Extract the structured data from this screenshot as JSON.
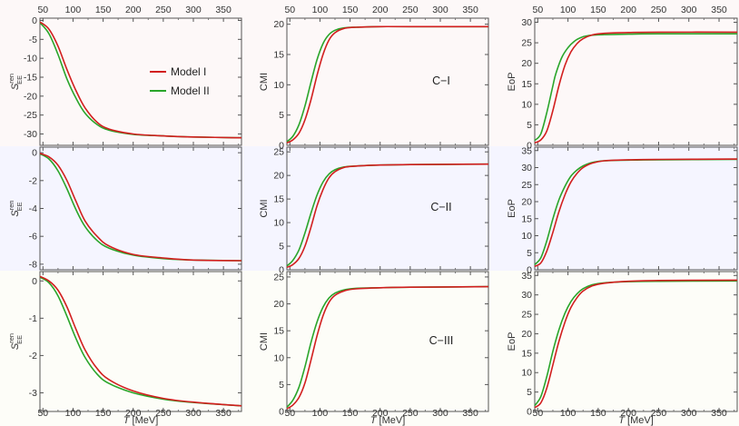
{
  "figure": {
    "xaxis": {
      "label_var": "T",
      "label_unit": " [MeV]",
      "range": [
        45,
        380
      ],
      "ticks": [
        50,
        100,
        150,
        200,
        250,
        300,
        350
      ]
    },
    "legend": {
      "entries": [
        {
          "label": "Model I",
          "color": "#d21f1f"
        },
        {
          "label": "Model II",
          "color": "#2aa52a"
        }
      ]
    },
    "row_backgrounds": [
      "#fdf8f8",
      "#f5f5ff",
      "#fdfdf8"
    ]
  },
  "chart_data": [
    {
      "type": "line",
      "row": 0,
      "col": 0,
      "ylabel_main": "S",
      "ylabel_sup": "ren",
      "ylabel_sub": "EE",
      "ylim": [
        -33,
        0.6
      ],
      "yticks": [
        0,
        -5,
        -10,
        -15,
        -20,
        -25,
        -30
      ],
      "series": [
        {
          "name": "Model I",
          "color": "#d21f1f",
          "x": [
            45,
            60,
            75,
            90,
            105,
            120,
            140,
            160,
            200,
            250,
            300,
            380
          ],
          "y": [
            -0.4,
            -2.3,
            -6.8,
            -13.0,
            -18.6,
            -23.1,
            -26.9,
            -28.7,
            -30.0,
            -30.5,
            -30.8,
            -31.0
          ]
        },
        {
          "name": "Model II",
          "color": "#2aa52a",
          "x": [
            45,
            60,
            75,
            90,
            105,
            120,
            140,
            160,
            200,
            250,
            300,
            380
          ],
          "y": [
            -0.6,
            -3.5,
            -9.0,
            -15.5,
            -20.6,
            -24.5,
            -27.5,
            -29.0,
            -30.1,
            -30.5,
            -30.8,
            -31.0
          ]
        }
      ]
    },
    {
      "type": "line",
      "row": 0,
      "col": 1,
      "ylabel": "CMI",
      "tag": "C−I",
      "ylim": [
        0,
        21
      ],
      "yticks": [
        0,
        5,
        10,
        15,
        20
      ],
      "series": [
        {
          "name": "Model I",
          "color": "#d21f1f",
          "x": [
            45,
            55,
            65,
            75,
            85,
            95,
            105,
            115,
            125,
            140,
            160,
            200,
            250,
            380
          ],
          "y": [
            0.4,
            0.9,
            2.0,
            4.2,
            7.5,
            11.5,
            15.0,
            17.4,
            18.6,
            19.3,
            19.5,
            19.6,
            19.6,
            19.6
          ]
        },
        {
          "name": "Model II",
          "color": "#2aa52a",
          "x": [
            45,
            55,
            65,
            75,
            85,
            95,
            105,
            115,
            125,
            140,
            160,
            200,
            250,
            380
          ],
          "y": [
            0.6,
            1.5,
            3.4,
            6.5,
            10.4,
            14.1,
            16.8,
            18.3,
            19.0,
            19.4,
            19.5,
            19.6,
            19.6,
            19.6
          ]
        }
      ]
    },
    {
      "type": "line",
      "row": 0,
      "col": 2,
      "ylabel": "EoP",
      "ylim": [
        0,
        31
      ],
      "yticks": [
        0,
        5,
        10,
        15,
        20,
        25,
        30
      ],
      "series": [
        {
          "name": "Model I",
          "color": "#d21f1f",
          "x": [
            45,
            55,
            65,
            75,
            85,
            95,
            105,
            115,
            125,
            140,
            160,
            200,
            250,
            380
          ],
          "y": [
            0.6,
            1.3,
            3.5,
            8.5,
            14.5,
            19.5,
            22.8,
            24.8,
            26.0,
            26.9,
            27.3,
            27.5,
            27.6,
            27.6
          ]
        },
        {
          "name": "Model II",
          "color": "#2aa52a",
          "x": [
            45,
            55,
            65,
            75,
            80,
            90,
            100,
            110,
            120,
            135,
            160,
            200,
            250,
            380
          ],
          "y": [
            1.2,
            2.8,
            8.0,
            14.5,
            17.5,
            21.5,
            23.8,
            25.3,
            26.2,
            26.8,
            27.0,
            27.1,
            27.2,
            27.2
          ]
        }
      ]
    },
    {
      "type": "line",
      "row": 1,
      "col": 0,
      "ylabel_main": "S",
      "ylabel_sup": "ren",
      "ylabel_sub": "EE",
      "ylim": [
        -8.4,
        0.4
      ],
      "yticks": [
        0,
        -2,
        -4,
        -6,
        -8
      ],
      "series": [
        {
          "name": "Model I",
          "color": "#d21f1f",
          "x": [
            45,
            60,
            75,
            90,
            105,
            120,
            140,
            160,
            200,
            250,
            300,
            380
          ],
          "y": [
            -0.05,
            -0.3,
            -0.9,
            -2.0,
            -3.5,
            -4.9,
            -6.0,
            -6.7,
            -7.3,
            -7.55,
            -7.7,
            -7.75
          ]
        },
        {
          "name": "Model II",
          "color": "#2aa52a",
          "x": [
            45,
            60,
            75,
            90,
            105,
            120,
            140,
            160,
            200,
            250,
            300,
            380
          ],
          "y": [
            -0.08,
            -0.45,
            -1.3,
            -2.6,
            -4.1,
            -5.3,
            -6.3,
            -6.85,
            -7.35,
            -7.6,
            -7.7,
            -7.75
          ]
        }
      ]
    },
    {
      "type": "line",
      "row": 1,
      "col": 1,
      "ylabel": "CMI",
      "tag": "C−II",
      "ylim": [
        0,
        26
      ],
      "yticks": [
        0,
        5,
        10,
        15,
        20,
        25
      ],
      "series": [
        {
          "name": "Model I",
          "color": "#d21f1f",
          "x": [
            45,
            55,
            65,
            75,
            85,
            95,
            105,
            115,
            125,
            140,
            160,
            200,
            250,
            380
          ],
          "y": [
            0.5,
            1.1,
            2.4,
            5.0,
            9.0,
            13.5,
            17.0,
            19.5,
            20.8,
            21.7,
            22.0,
            22.2,
            22.3,
            22.4
          ]
        },
        {
          "name": "Model II",
          "color": "#2aa52a",
          "x": [
            45,
            55,
            65,
            75,
            85,
            95,
            105,
            115,
            125,
            140,
            160,
            200,
            250,
            380
          ],
          "y": [
            0.8,
            2.0,
            4.2,
            7.8,
            12.0,
            15.8,
            18.6,
            20.3,
            21.2,
            21.8,
            22.0,
            22.2,
            22.3,
            22.4
          ]
        }
      ]
    },
    {
      "type": "line",
      "row": 1,
      "col": 2,
      "ylabel": "EoP",
      "ylim": [
        0,
        36
      ],
      "yticks": [
        0,
        5,
        10,
        15,
        20,
        25,
        30,
        35
      ],
      "series": [
        {
          "name": "Model I",
          "color": "#d21f1f",
          "x": [
            45,
            55,
            65,
            75,
            85,
            95,
            105,
            115,
            125,
            140,
            160,
            200,
            250,
            380
          ],
          "y": [
            1.0,
            2.0,
            5.5,
            11.0,
            17.0,
            22.0,
            25.8,
            28.3,
            30.0,
            31.3,
            32.0,
            32.3,
            32.4,
            32.5
          ]
        },
        {
          "name": "Model II",
          "color": "#2aa52a",
          "x": [
            45,
            55,
            65,
            75,
            85,
            95,
            105,
            115,
            125,
            140,
            160,
            200,
            250,
            380
          ],
          "y": [
            1.5,
            3.5,
            8.5,
            15.0,
            20.5,
            24.5,
            27.5,
            29.3,
            30.5,
            31.5,
            32.0,
            32.2,
            32.3,
            32.4
          ]
        }
      ]
    },
    {
      "type": "line",
      "row": 2,
      "col": 0,
      "ylabel_main": "S",
      "ylabel_sup": "ren",
      "ylabel_sub": "EE",
      "ylim": [
        -3.5,
        0.25
      ],
      "yticks": [
        0,
        -1,
        -2,
        -3
      ],
      "series": [
        {
          "name": "Model I",
          "color": "#d21f1f",
          "x": [
            45,
            60,
            75,
            90,
            105,
            120,
            140,
            160,
            200,
            250,
            300,
            380
          ],
          "y": [
            0.12,
            0.0,
            -0.25,
            -0.7,
            -1.3,
            -1.85,
            -2.35,
            -2.65,
            -2.95,
            -3.15,
            -3.25,
            -3.35
          ]
        },
        {
          "name": "Model II",
          "color": "#2aa52a",
          "x": [
            45,
            60,
            75,
            90,
            105,
            120,
            140,
            160,
            200,
            250,
            300,
            380
          ],
          "y": [
            0.1,
            -0.05,
            -0.4,
            -0.95,
            -1.55,
            -2.05,
            -2.5,
            -2.75,
            -3.0,
            -3.17,
            -3.26,
            -3.35
          ]
        }
      ]
    },
    {
      "type": "line",
      "row": 2,
      "col": 1,
      "ylabel": "CMI",
      "tag": "C−III",
      "ylim": [
        0,
        26
      ],
      "yticks": [
        0,
        5,
        10,
        15,
        20,
        25
      ],
      "series": [
        {
          "name": "Model I",
          "color": "#d21f1f",
          "x": [
            45,
            55,
            65,
            75,
            85,
            95,
            105,
            115,
            125,
            140,
            160,
            200,
            250,
            380
          ],
          "y": [
            0.5,
            1.2,
            2.6,
            5.3,
            9.5,
            14.0,
            17.8,
            20.3,
            21.6,
            22.4,
            22.8,
            23.0,
            23.1,
            23.2
          ]
        },
        {
          "name": "Model II",
          "color": "#2aa52a",
          "x": [
            45,
            55,
            65,
            75,
            85,
            95,
            105,
            115,
            125,
            140,
            160,
            200,
            250,
            380
          ],
          "y": [
            0.8,
            2.1,
            4.5,
            8.3,
            12.8,
            16.6,
            19.4,
            21.1,
            22.0,
            22.6,
            22.9,
            23.0,
            23.1,
            23.2
          ]
        }
      ]
    },
    {
      "type": "line",
      "row": 2,
      "col": 2,
      "ylabel": "EoP",
      "ylim": [
        0,
        36
      ],
      "yticks": [
        0,
        5,
        10,
        15,
        20,
        25,
        30,
        35
      ],
      "series": [
        {
          "name": "Model I",
          "color": "#d21f1f",
          "x": [
            45,
            55,
            65,
            75,
            85,
            95,
            105,
            115,
            125,
            140,
            160,
            200,
            250,
            380
          ],
          "y": [
            1.0,
            2.2,
            6.0,
            12.0,
            18.0,
            23.0,
            26.8,
            29.3,
            31.0,
            32.3,
            33.0,
            33.5,
            33.7,
            33.8
          ]
        },
        {
          "name": "Model II",
          "color": "#2aa52a",
          "x": [
            45,
            55,
            65,
            75,
            85,
            95,
            105,
            115,
            125,
            140,
            160,
            200,
            250,
            380
          ],
          "y": [
            1.5,
            3.8,
            9.0,
            15.5,
            21.0,
            25.3,
            28.3,
            30.3,
            31.6,
            32.6,
            33.1,
            33.4,
            33.5,
            33.6
          ]
        }
      ]
    }
  ]
}
